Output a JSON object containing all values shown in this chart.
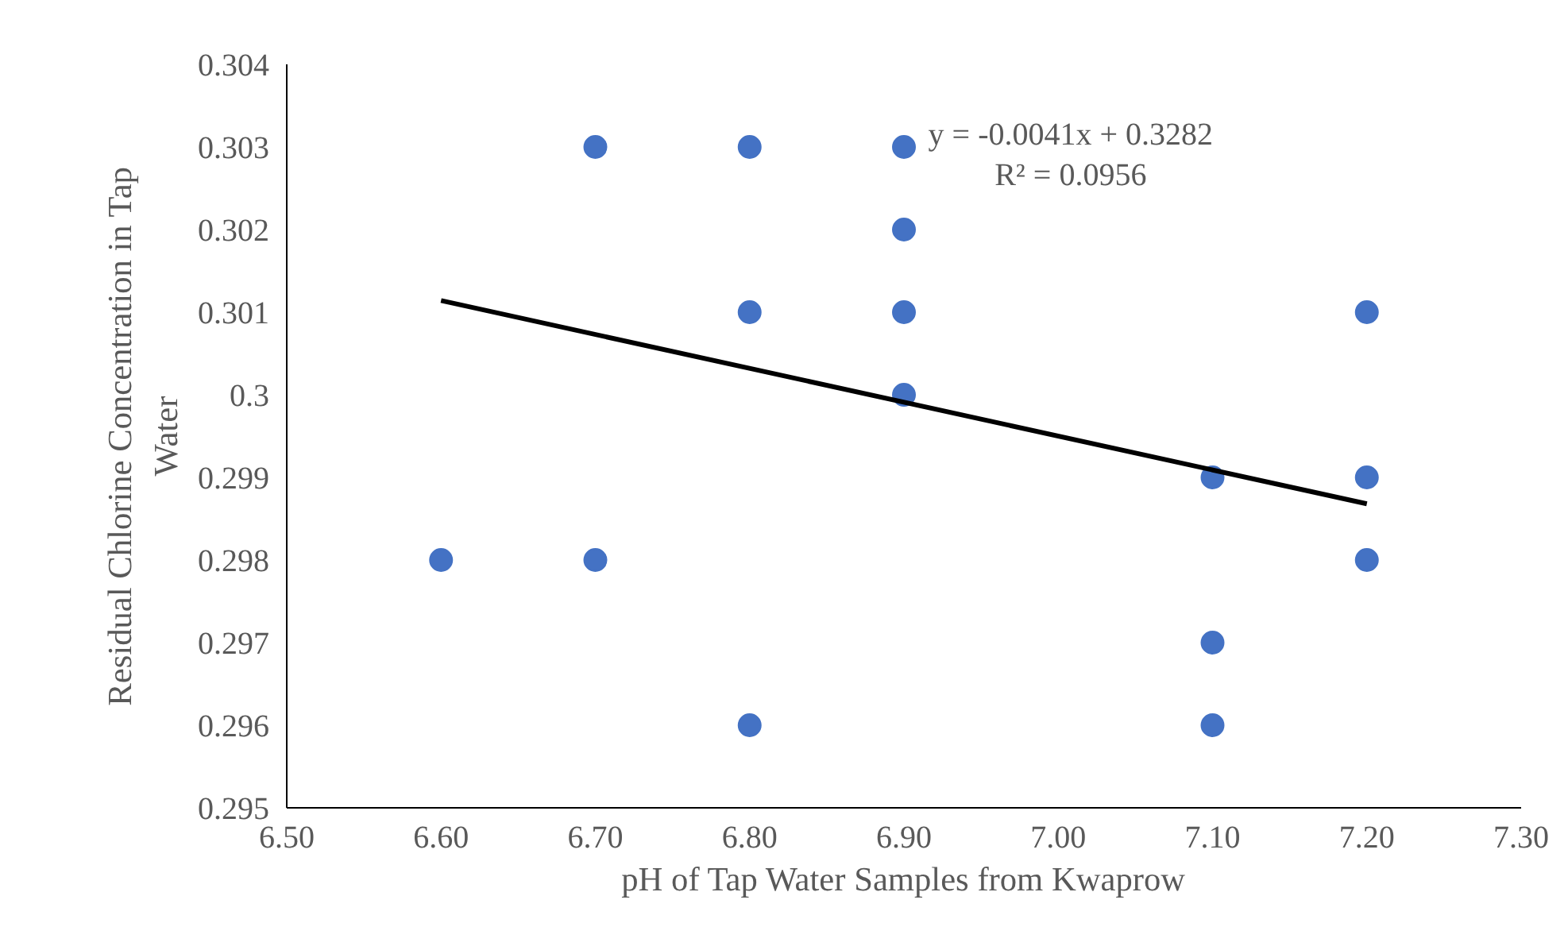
{
  "chart_data": {
    "type": "scatter",
    "xlabel": "pH of Tap Water Samples from Kwaprow",
    "ylabel": "Residual Chlorine Concentration in Tap Water",
    "x": [
      6.6,
      6.7,
      6.7,
      6.8,
      6.8,
      6.8,
      6.9,
      6.9,
      6.9,
      6.9,
      7.1,
      7.1,
      7.1,
      7.2,
      7.2,
      7.2
    ],
    "series": [
      {
        "color": "#4472c4",
        "values": [
          0.298,
          0.303,
          0.298,
          0.303,
          0.301,
          0.296,
          0.303,
          0.302,
          0.301,
          0.3,
          0.299,
          0.297,
          0.296,
          0.301,
          0.299,
          0.298
        ]
      },
      {
        "type": "line",
        "marker": "none",
        "color": "#000000",
        "x": [
          6.6,
          7.2
        ],
        "values": [
          0.30114,
          0.29868
        ]
      }
    ],
    "marker": "circle",
    "xlim": [
      6.5,
      7.3
    ],
    "xticks": [
      {
        "value": 6.5,
        "label": "6.50"
      },
      {
        "value": 6.6,
        "label": "6.60"
      },
      {
        "value": 6.7,
        "label": "6.70"
      },
      {
        "value": 6.8,
        "label": "6.80"
      },
      {
        "value": 6.9,
        "label": "6.90"
      },
      {
        "value": 7.0,
        "label": "7.00"
      },
      {
        "value": 7.1,
        "label": "7.10"
      },
      {
        "value": 7.2,
        "label": "7.20"
      },
      {
        "value": 7.3,
        "label": "7.30"
      }
    ],
    "ylim": [
      0.295,
      0.304
    ],
    "yticks": [
      0.295,
      0.296,
      0.297,
      0.298,
      0.299,
      0.3,
      0.301,
      0.302,
      0.303,
      0.304
    ],
    "annotations": [
      "y = -0.0041x + 0.3282",
      "R² = 0.0956"
    ],
    "grid": false
  }
}
